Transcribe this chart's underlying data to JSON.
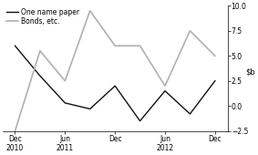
{
  "x_labels_top": [
    "Dec",
    "Jun",
    "Dec",
    "Jun",
    "Dec"
  ],
  "x_labels_bot": [
    "2010",
    "2011",
    "",
    "2012",
    ""
  ],
  "x_positions": [
    0,
    2,
    4,
    6,
    8
  ],
  "one_name_paper": [
    6.0,
    3.0,
    0.3,
    -0.3,
    2.0,
    -1.5,
    1.5,
    -0.8,
    2.5
  ],
  "bonds": [
    -2.5,
    5.5,
    2.5,
    9.5,
    6.0,
    6.0,
    2.0,
    7.5,
    5.0
  ],
  "x_vals": [
    0,
    1,
    2,
    3,
    4,
    5,
    6,
    7,
    8
  ],
  "ylim": [
    -2.5,
    10.0
  ],
  "yticks": [
    -2.5,
    0.0,
    2.5,
    5.0,
    7.5,
    10.0
  ],
  "one_name_color": "#111111",
  "bonds_color": "#b0b0b0",
  "legend_one_name": "One name paper",
  "legend_bonds": "Bonds, etc.",
  "background_color": "#ffffff"
}
